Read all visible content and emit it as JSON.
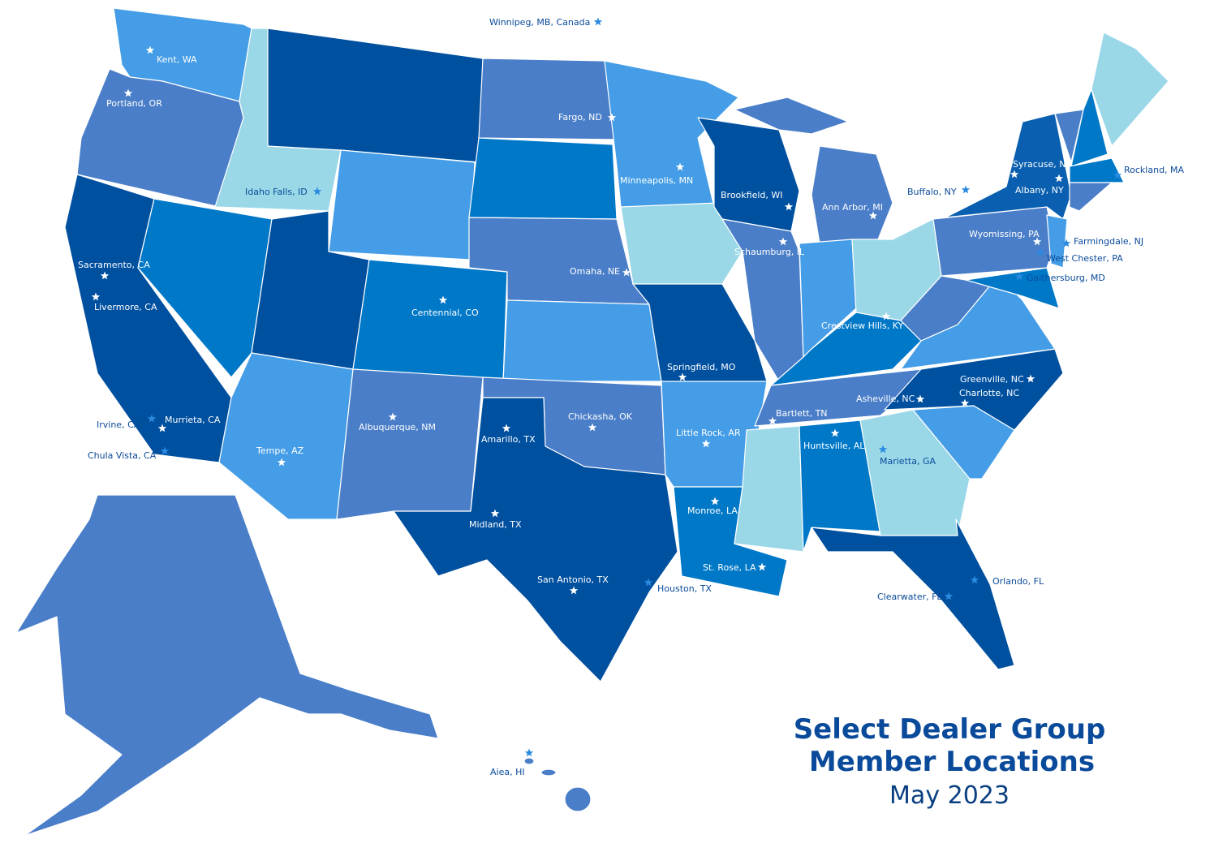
{
  "header": {
    "title_line1": "Select Dealer Group",
    "title_line2": "Member Locations",
    "subtitle": "May 2023"
  },
  "locations": [
    "Winnipeg, MB, Canada",
    "Kent, WA",
    "Portland, OR",
    "Idaho Falls, ID",
    "Fargo, ND",
    "Minneapolis, MN",
    "Brookfield, WI",
    "Ann Arbor, MI",
    "Schaumburg, IL",
    "Omaha, NE",
    "Sacramento, CA",
    "Livermore, CA",
    "Centennial, CO",
    "Springfield, MO",
    "Crestview Hills, KY",
    "Irvine, CA",
    "Murrieta, CA",
    "Chula Vista, CA",
    "Tempe, AZ",
    "Albuquerque, NM",
    "Amarillo, TX",
    "Chickasha, OK",
    "Little Rock, AR",
    "Bartlett, TN",
    "Huntsville, AL",
    "Marietta, GA",
    "Asheville, NC",
    "Greenville, NC",
    "Charlotte, NC",
    "Midland, TX",
    "Monroe, LA",
    "St. Rose, LA",
    "San Antonio, TX",
    "Houston, TX",
    "Clearwater, FL",
    "Orlando, FL",
    "Buffalo, NY",
    "Syracuse, NY",
    "Albany, NY",
    "Rockland, MA",
    "Wyomissing, PA",
    "Farmingdale, NJ",
    "West Chester, PA",
    "Gaithersburg, MD",
    "Aiea, HI"
  ]
}
